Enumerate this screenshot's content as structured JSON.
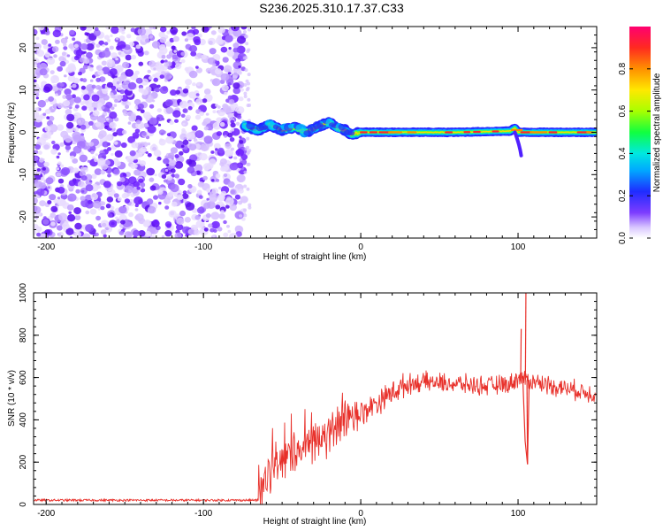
{
  "title": "S236.2025.310.17.37.C33",
  "chart_data": [
    {
      "type": "heatmap",
      "name": "spectrogram",
      "xlabel": "Height of straight line (km)",
      "ylabel": "Frequency (Hz)",
      "xlim": [
        -208,
        150
      ],
      "ylim": [
        -25,
        25
      ],
      "xticks": [
        -200,
        -100,
        0,
        100
      ],
      "yticks": [
        -20,
        -10,
        0,
        10,
        20
      ],
      "noise_region_x": [
        -208,
        -74
      ],
      "signal_track": [
        {
          "x": -74,
          "y": 1.5
        },
        {
          "x": -65,
          "y": 0.5
        },
        {
          "x": -58,
          "y": 1.8
        },
        {
          "x": -50,
          "y": 0.5
        },
        {
          "x": -42,
          "y": 1.2
        },
        {
          "x": -35,
          "y": 0.0
        },
        {
          "x": -28,
          "y": 1.2
        },
        {
          "x": -20,
          "y": 2.4
        },
        {
          "x": -15,
          "y": 1.0
        },
        {
          "x": -10,
          "y": 0.5
        },
        {
          "x": -6,
          "y": -0.5
        },
        {
          "x": 0,
          "y": 0.0
        },
        {
          "x": 20,
          "y": 0.0
        },
        {
          "x": 60,
          "y": 0.0
        },
        {
          "x": 95,
          "y": 0.3
        },
        {
          "x": 98,
          "y": 1.0
        },
        {
          "x": 100,
          "y": 0.0
        },
        {
          "x": 150,
          "y": 0.0
        }
      ],
      "colorbar": {
        "label": "Normalized spectral amplitude",
        "ticks": [
          0.0,
          0.2,
          0.4,
          0.6,
          0.8
        ],
        "range": [
          0,
          1
        ]
      }
    },
    {
      "type": "line",
      "name": "snr",
      "xlabel": "Height of straight line (km)",
      "ylabel": "SNR (10 * v/v)",
      "xlim": [
        -208,
        150
      ],
      "ylim": [
        0,
        1000
      ],
      "xticks": [
        -200,
        -100,
        0,
        100
      ],
      "yticks": [
        0,
        200,
        400,
        600,
        800,
        1000
      ],
      "series": [
        {
          "name": "SNR",
          "color": "#e8302a",
          "points": [
            {
              "x": -208,
              "y": 20
            },
            {
              "x": -150,
              "y": 20
            },
            {
              "x": -100,
              "y": 20
            },
            {
              "x": -65,
              "y": 20
            },
            {
              "x": -60,
              "y": 150
            },
            {
              "x": -50,
              "y": 200
            },
            {
              "x": -40,
              "y": 250
            },
            {
              "x": -30,
              "y": 300
            },
            {
              "x": -20,
              "y": 330
            },
            {
              "x": -10,
              "y": 380
            },
            {
              "x": 0,
              "y": 430
            },
            {
              "x": 10,
              "y": 480
            },
            {
              "x": 20,
              "y": 530
            },
            {
              "x": 30,
              "y": 570
            },
            {
              "x": 40,
              "y": 580
            },
            {
              "x": 60,
              "y": 570
            },
            {
              "x": 80,
              "y": 560
            },
            {
              "x": 95,
              "y": 570
            },
            {
              "x": 100,
              "y": 600
            },
            {
              "x": 110,
              "y": 580
            },
            {
              "x": 130,
              "y": 550
            },
            {
              "x": 150,
              "y": 520
            }
          ],
          "spikes": [
            {
              "x": 102,
              "y": 830
            },
            {
              "x": 105,
              "y": 1000
            },
            {
              "x": 106,
              "y": 190
            }
          ]
        }
      ]
    }
  ]
}
